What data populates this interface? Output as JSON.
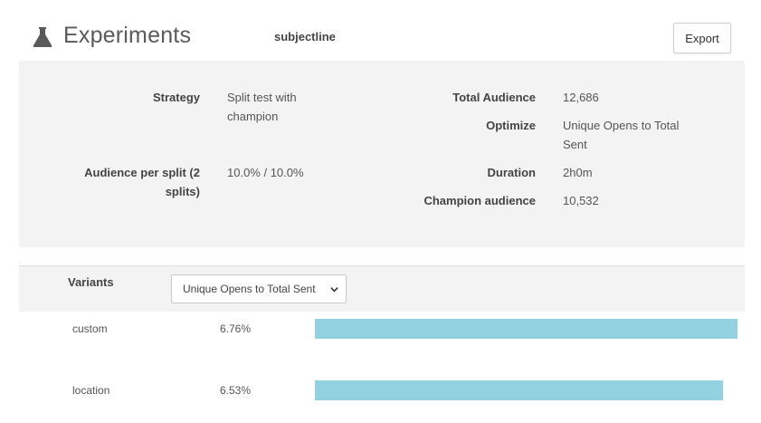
{
  "header": {
    "title": "Experiments",
    "experiment_name": "subjectline",
    "export_label": "Export"
  },
  "summary": {
    "strategy_label": "Strategy",
    "strategy_value_line1": "Split test with",
    "strategy_value_line2": "champion",
    "audience_split_label_line1": "Audience per split (2",
    "audience_split_label_line2": "splits)",
    "audience_split_value": "10.0% / 10.0%",
    "total_audience_label": "Total Audience",
    "total_audience_value": "12,686",
    "optimize_label": "Optimize",
    "optimize_value_line1": "Unique Opens to Total",
    "optimize_value_line2": "Sent",
    "duration_label": "Duration",
    "duration_value": "2h0m",
    "champion_audience_label": "Champion audience",
    "champion_audience_value": "10,532"
  },
  "variants": {
    "label": "Variants",
    "selected_metric": "Unique Opens to Total Sent",
    "max_percent": 6.76,
    "items": [
      {
        "name": "custom",
        "value": "6.76%",
        "percent": 6.76
      },
      {
        "name": "location",
        "value": "6.53%",
        "percent": 6.53
      }
    ]
  },
  "colors": {
    "bar": "#92d2e0",
    "panel": "#f3f3f3"
  },
  "icons": {
    "title_icon": "flask-icon",
    "select_icon": "chevron-down-icon"
  }
}
